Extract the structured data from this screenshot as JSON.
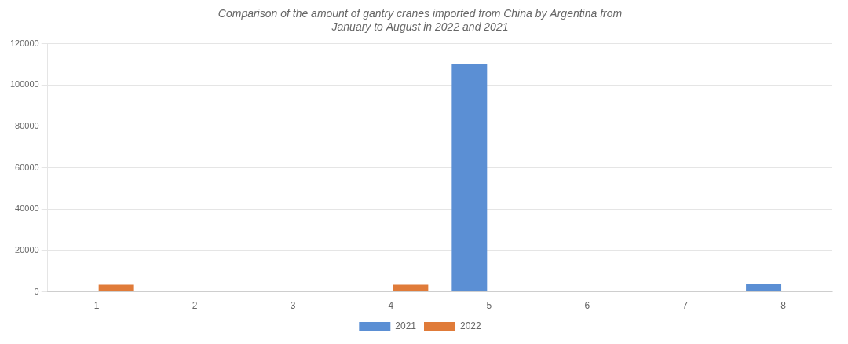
{
  "chart_data": {
    "type": "bar",
    "title": "Comparison of the amount of gantry cranes imported from China by Argentina from\nJanuary to August in 2022 and 2021",
    "categories": [
      1,
      2,
      3,
      4,
      5,
      6,
      7,
      8
    ],
    "series": [
      {
        "name": "2021",
        "color": "#5B8FD4",
        "values": [
          0,
          0,
          0,
          0,
          110000,
          0,
          0,
          4000
        ]
      },
      {
        "name": "2022",
        "color": "#E07B39",
        "values": [
          3500,
          0,
          0,
          3500,
          0,
          0,
          0,
          0
        ]
      }
    ],
    "ylim": [
      0,
      120000
    ],
    "yticks": [
      0,
      20000,
      40000,
      60000,
      80000,
      100000,
      120000
    ],
    "grid": true,
    "legend": "bottom"
  }
}
